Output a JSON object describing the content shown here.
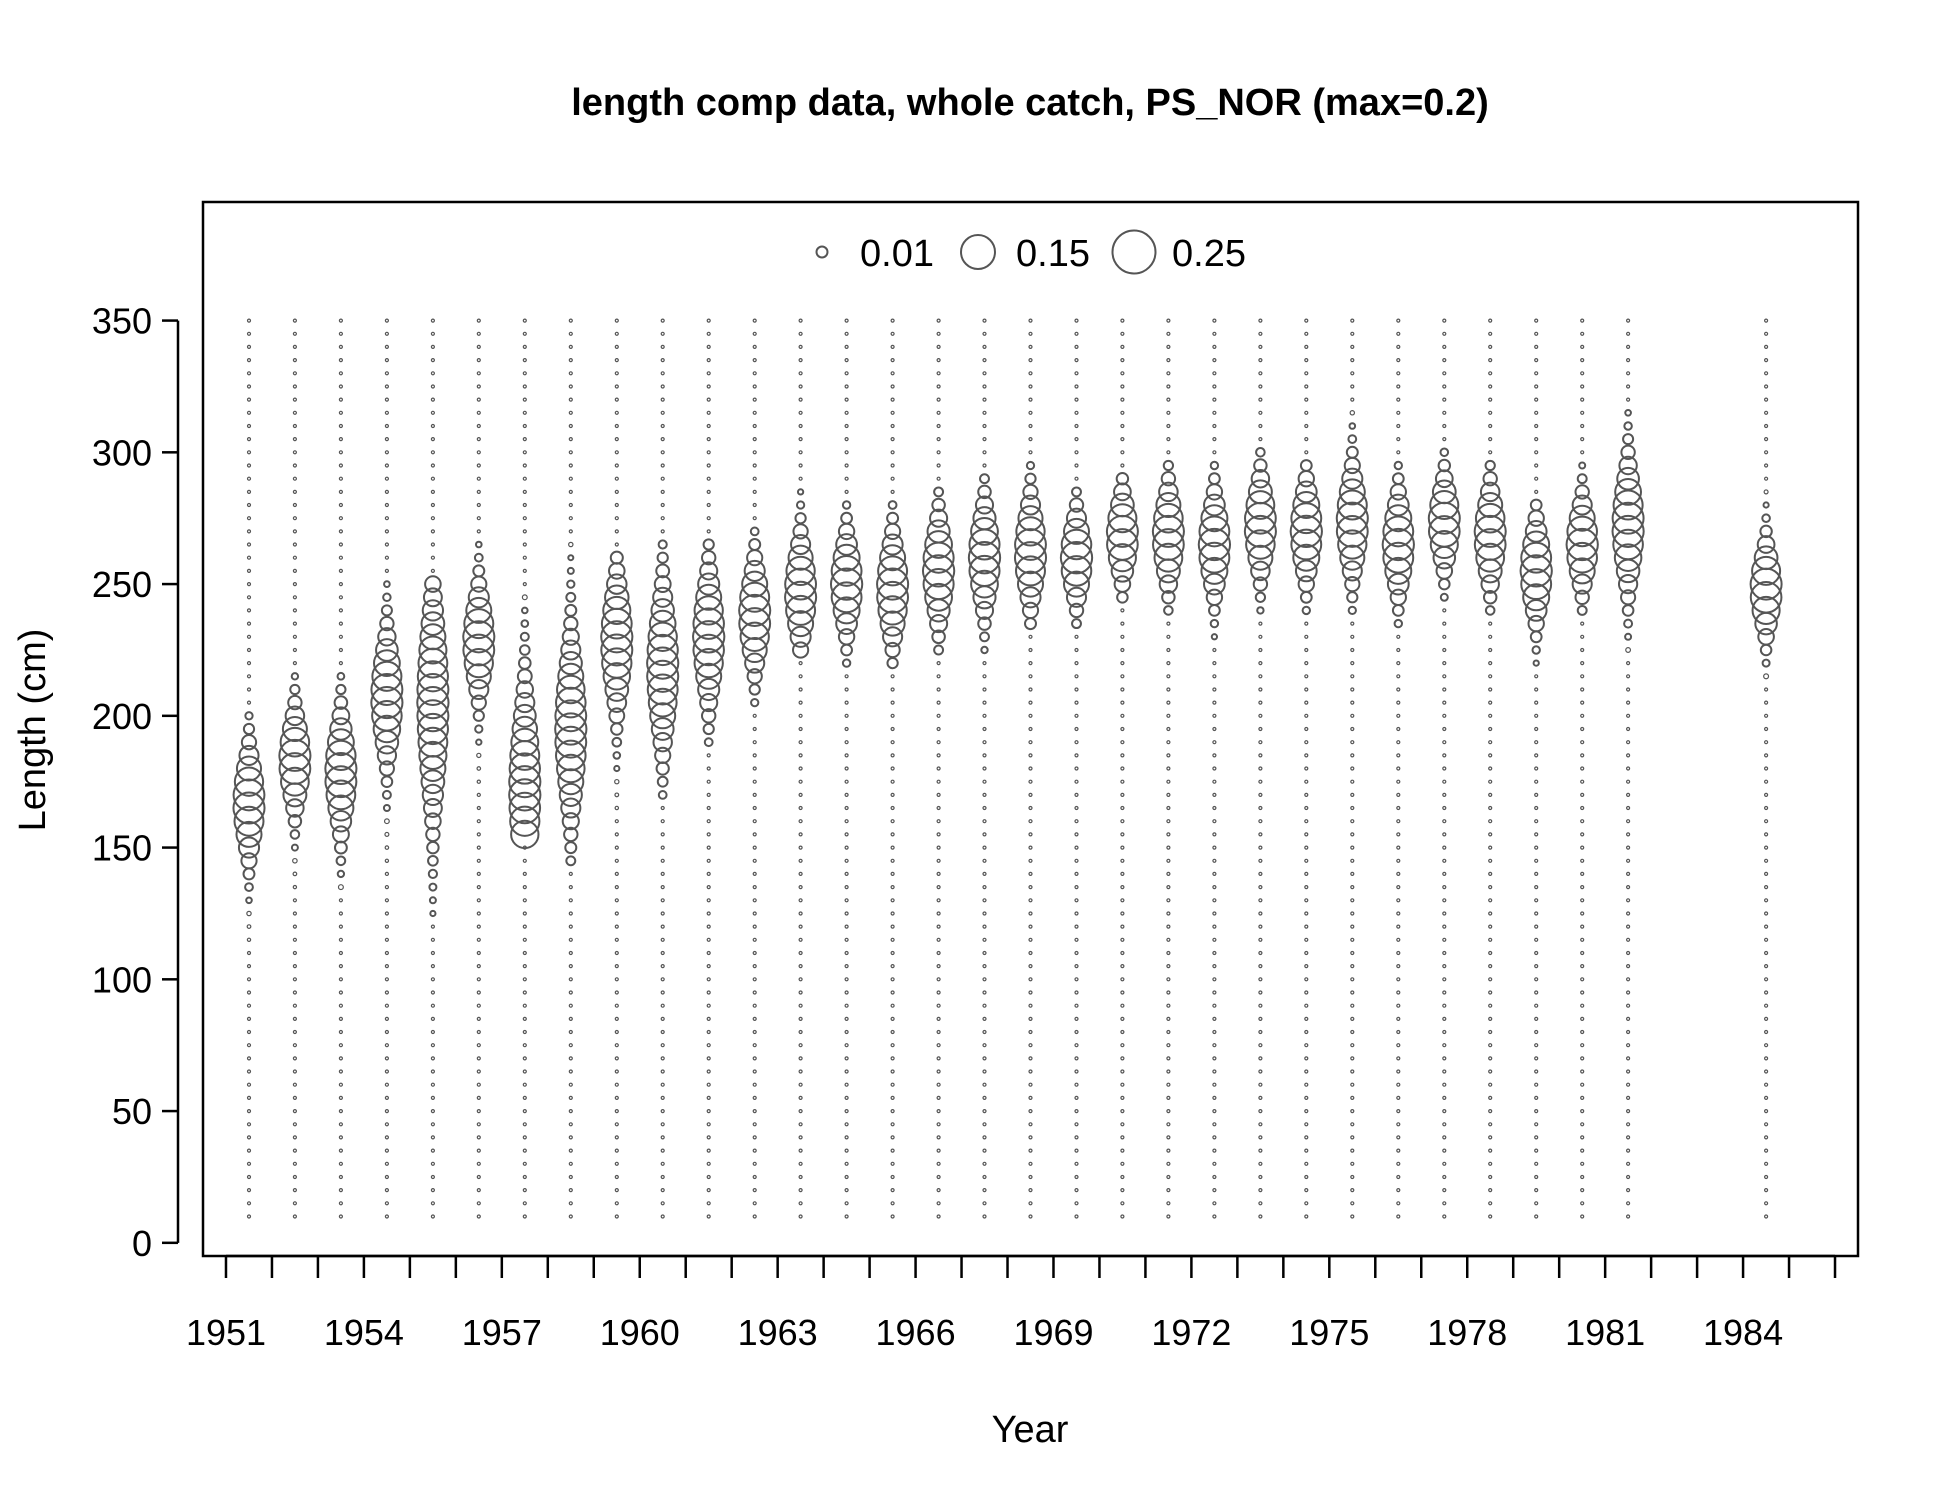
{
  "chart_data": {
    "type": "bubble",
    "title": "length comp data, whole catch, PS_NOR (max=0.2)",
    "xlabel": "Year",
    "ylabel": "Length (cm)",
    "xlim": [
      1950.5,
      1986.5
    ],
    "ylim": [
      -5,
      395
    ],
    "x_ticks": [
      1951,
      1952,
      1953,
      1954,
      1955,
      1956,
      1957,
      1958,
      1959,
      1960,
      1961,
      1962,
      1963,
      1964,
      1965,
      1966,
      1967,
      1968,
      1969,
      1970,
      1971,
      1972,
      1973,
      1974,
      1975,
      1976,
      1977,
      1978,
      1979,
      1980,
      1981,
      1982,
      1983,
      1984,
      1985,
      1986
    ],
    "x_tick_labels": [
      "1951",
      "1954",
      "1957",
      "1960",
      "1963",
      "1966",
      "1969",
      "1972",
      "1975",
      "1978",
      "1981",
      "1984"
    ],
    "y_ticks": [
      0,
      50,
      100,
      150,
      200,
      250,
      300,
      350
    ],
    "y_tick_labels": [
      "0",
      "50",
      "100",
      "150",
      "200",
      "250",
      "300",
      "350"
    ],
    "length_bins": {
      "start": 10,
      "end": 350,
      "step": 5
    },
    "legend": {
      "position": "top-center",
      "entries": [
        {
          "label": "0.01",
          "value": 0.01
        },
        {
          "label": "0.15",
          "value": 0.15
        },
        {
          "label": "0.25",
          "value": 0.25
        }
      ]
    },
    "series": [
      {
        "year": 1951.5,
        "mode": 167,
        "sd": 12,
        "min": 115,
        "max": 200
      },
      {
        "year": 1952.5,
        "mode": 183,
        "sd": 11,
        "min": 135,
        "max": 215
      },
      {
        "year": 1953.5,
        "mode": 178,
        "sd": 13,
        "min": 135,
        "max": 215
      },
      {
        "year": 1954.5,
        "mode": 207,
        "sd": 14,
        "min": 135,
        "max": 250
      },
      {
        "year": 1955.5,
        "mode": 205,
        "sd": 25,
        "min": 125,
        "max": 250
      },
      {
        "year": 1956.5,
        "mode": 228,
        "sd": 12,
        "min": 145,
        "max": 265
      },
      {
        "year": 1957.5,
        "mode": 172,
        "sd": 22,
        "min": 155,
        "max": 245
      },
      {
        "year": 1958.5,
        "mode": 195,
        "sd": 20,
        "min": 145,
        "max": 265
      },
      {
        "year": 1959.5,
        "mode": 228,
        "sd": 15,
        "min": 165,
        "max": 260
      },
      {
        "year": 1960.5,
        "mode": 218,
        "sd": 18,
        "min": 170,
        "max": 265
      },
      {
        "year": 1961.5,
        "mode": 230,
        "sd": 15,
        "min": 190,
        "max": 265
      },
      {
        "year": 1962.5,
        "mode": 238,
        "sd": 12,
        "min": 205,
        "max": 270
      },
      {
        "year": 1963.5,
        "mode": 247,
        "sd": 12,
        "min": 225,
        "max": 285
      },
      {
        "year": 1964.5,
        "mode": 250,
        "sd": 11,
        "min": 220,
        "max": 280
      },
      {
        "year": 1965.5,
        "mode": 248,
        "sd": 12,
        "min": 220,
        "max": 280
      },
      {
        "year": 1966.5,
        "mode": 255,
        "sd": 12,
        "min": 225,
        "max": 285
      },
      {
        "year": 1967.5,
        "mode": 260,
        "sd": 12,
        "min": 225,
        "max": 290
      },
      {
        "year": 1968.5,
        "mode": 262,
        "sd": 12,
        "min": 235,
        "max": 295
      },
      {
        "year": 1969.5,
        "mode": 260,
        "sd": 10,
        "min": 235,
        "max": 285
      },
      {
        "year": 1970.5,
        "mode": 268,
        "sd": 10,
        "min": 245,
        "max": 290
      },
      {
        "year": 1971.5,
        "mode": 268,
        "sd": 11,
        "min": 240,
        "max": 295
      },
      {
        "year": 1972.5,
        "mode": 265,
        "sd": 11,
        "min": 230,
        "max": 295
      },
      {
        "year": 1973.5,
        "mode": 272,
        "sd": 11,
        "min": 240,
        "max": 300
      },
      {
        "year": 1974.5,
        "mode": 270,
        "sd": 11,
        "min": 240,
        "max": 295
      },
      {
        "year": 1975.5,
        "mode": 273,
        "sd": 12,
        "min": 240,
        "max": 315
      },
      {
        "year": 1976.5,
        "mode": 265,
        "sd": 11,
        "min": 235,
        "max": 295
      },
      {
        "year": 1977.5,
        "mode": 273,
        "sd": 10,
        "min": 245,
        "max": 300
      },
      {
        "year": 1978.5,
        "mode": 268,
        "sd": 11,
        "min": 240,
        "max": 295
      },
      {
        "year": 1979.5,
        "mode": 255,
        "sd": 11,
        "min": 220,
        "max": 280
      },
      {
        "year": 1980.5,
        "mode": 265,
        "sd": 10,
        "min": 240,
        "max": 295
      },
      {
        "year": 1981.5,
        "mode": 272,
        "sd": 14,
        "min": 225,
        "max": 315
      },
      {
        "year": 1984.5,
        "mode": 248,
        "sd": 10,
        "min": 215,
        "max": 285
      }
    ],
    "grid": false
  }
}
